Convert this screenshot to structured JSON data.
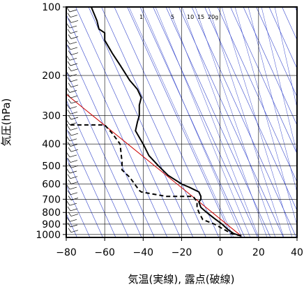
{
  "chart_data": {
    "type": "line",
    "diagram": "emagram",
    "xlabel": "気温(実線), 露点(破線)",
    "ylabel": "気圧(hPa)",
    "x_range": [
      -80,
      40
    ],
    "y_range_hpa": [
      1030,
      100
    ],
    "y_scale": "log",
    "grid": true,
    "x_ticks": [
      -80,
      -60,
      -40,
      -20,
      0,
      20,
      40
    ],
    "x_tick_labels": [
      "−80",
      "−60",
      "−40",
      "−20",
      "0",
      "20",
      "40"
    ],
    "y_ticks": [
      100,
      200,
      300,
      400,
      500,
      600,
      700,
      800,
      900,
      1000
    ],
    "mixing_ratio_labels": [
      "1",
      "5",
      "10",
      "15",
      "20g"
    ],
    "series": [
      {
        "style": "solid",
        "color": "#000000",
        "points": [
          [
            11,
            1015
          ],
          [
            7,
            990
          ],
          [
            4,
            950
          ],
          [
            1,
            900
          ],
          [
            -3,
            850
          ],
          [
            -7,
            800
          ],
          [
            -10,
            760
          ],
          [
            -11,
            720
          ],
          [
            -10,
            700
          ],
          [
            -10,
            680
          ],
          [
            -11,
            650
          ],
          [
            -16,
            620
          ],
          [
            -20,
            600
          ],
          [
            -27,
            550
          ],
          [
            -32,
            500
          ],
          [
            -37,
            450
          ],
          [
            -40,
            400
          ],
          [
            -44,
            350
          ],
          [
            -43,
            320
          ],
          [
            -42,
            300
          ],
          [
            -42,
            270
          ],
          [
            -41,
            250
          ],
          [
            -43,
            230
          ],
          [
            -47,
            210
          ],
          [
            -52,
            180
          ],
          [
            -56,
            160
          ],
          [
            -60,
            140
          ],
          [
            -60,
            130
          ],
          [
            -63,
            125
          ],
          [
            -64,
            115
          ],
          [
            -67,
            100
          ]
        ]
      },
      {
        "style": "dashed",
        "color": "#000000",
        "points": [
          [
            11,
            1015
          ],
          [
            6,
            990
          ],
          [
            2,
            950
          ],
          [
            -3,
            900
          ],
          [
            -6,
            880
          ],
          [
            -9,
            860
          ],
          [
            -11,
            800
          ],
          [
            -12,
            760
          ],
          [
            -12,
            720
          ],
          [
            -14,
            680
          ],
          [
            -28,
            680
          ],
          [
            -41,
            650
          ],
          [
            -42,
            640
          ],
          [
            -47,
            560
          ],
          [
            -51,
            520
          ],
          [
            -51,
            480
          ],
          [
            -52,
            400
          ],
          [
            -56,
            360
          ],
          [
            -60,
            330
          ],
          [
            -80,
            330
          ]
        ]
      }
    ],
    "reference_lines": {
      "dry_adiabat_color": "#cc0000",
      "isotherm_color": "#3344cc",
      "red_line": [
        [
          11,
          1015
        ],
        [
          -86,
          220
        ]
      ]
    }
  }
}
